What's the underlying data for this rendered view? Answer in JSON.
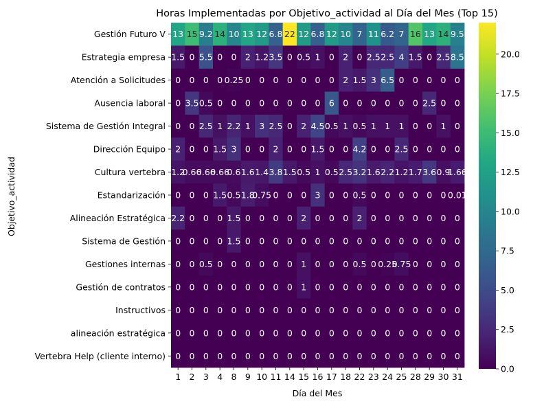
{
  "chart_data": {
    "type": "heatmap",
    "title": "Horas Implementadas por Objetivo_actividad al Día del Mes (Top 15)",
    "xlabel": "Día del Mes",
    "ylabel": "Objetivo_actividad",
    "x": [
      "1",
      "2",
      "3",
      "4",
      "8",
      "9",
      "10",
      "11",
      "14",
      "15",
      "16",
      "17",
      "18",
      "22",
      "23",
      "24",
      "25",
      "28",
      "29",
      "30",
      "31"
    ],
    "y": [
      "Gestión Futuro V",
      "Estrategia empresa",
      "Atención a Solicitudes",
      "Ausencia laboral",
      "Sistema de Gestión Integral",
      "Dirección Equipo",
      "Cultura vertebra",
      "Estandarización",
      "Alineación Estratégica",
      "Sistema de Gestión",
      "Gestiones internas",
      "Gestión de contratos",
      "Instructivos",
      "alineación estratégica",
      "Vertebra Help (cliente interno)"
    ],
    "values": [
      [
        13,
        15,
        9.2,
        14,
        10,
        13,
        12,
        6.8,
        22,
        12,
        6.8,
        12,
        10,
        7,
        11,
        6.2,
        7,
        16,
        13,
        14,
        9.5
      ],
      [
        1.5,
        0,
        5.5,
        0,
        0,
        2,
        1.2,
        3.5,
        0,
        0.5,
        1,
        0,
        2,
        0,
        2.5,
        2.5,
        4,
        1.5,
        0,
        2.5,
        8.5
      ],
      [
        0,
        0,
        0,
        0,
        0.25,
        0,
        0,
        0,
        0,
        0,
        0,
        0,
        2,
        1.5,
        3,
        6.5,
        0,
        0,
        0,
        0,
        0
      ],
      [
        0,
        3.5,
        0.5,
        0,
        0,
        0,
        0,
        0,
        0,
        0,
        0,
        6,
        0,
        0,
        0,
        0,
        0,
        0,
        2.5,
        0,
        0
      ],
      [
        0,
        0,
        2.5,
        1,
        2.2,
        1,
        3,
        2.5,
        0,
        2,
        4.5,
        0.5,
        1,
        0.5,
        1,
        1,
        1,
        0,
        0,
        1,
        0
      ],
      [
        2,
        0,
        0,
        1.5,
        3,
        0,
        0,
        2,
        0,
        0,
        1.5,
        0,
        0,
        4.2,
        0,
        0,
        2.5,
        0,
        0,
        0,
        0
      ],
      [
        1.2,
        0.66,
        0.66,
        0.66,
        0.6,
        1.6,
        1.4,
        3.8,
        1.5,
        0.5,
        1,
        0.5,
        2.5,
        3.2,
        1.6,
        2.2,
        1.2,
        1.7,
        3.6,
        0.9,
        1.66
      ],
      [
        0,
        0,
        0,
        1.5,
        0.5,
        1.8,
        0.75,
        0,
        0,
        0,
        3,
        0,
        0,
        0.5,
        0,
        0,
        0,
        0,
        0,
        0,
        0.01
      ],
      [
        2.2,
        0,
        0,
        0,
        1.5,
        0,
        0,
        0,
        0,
        2,
        0,
        0,
        0,
        2,
        0,
        0,
        0,
        0,
        0,
        0,
        0
      ],
      [
        0,
        0,
        0,
        0,
        1.5,
        0,
        0,
        0,
        0,
        0,
        0,
        0,
        0,
        0,
        0,
        0,
        0,
        0,
        0,
        0,
        0
      ],
      [
        0,
        0,
        0.5,
        0,
        0,
        0,
        0,
        0,
        0,
        1,
        0,
        0,
        0,
        0.5,
        0,
        0.25,
        0.75,
        0,
        0,
        0,
        0
      ],
      [
        0,
        0,
        0,
        0,
        0,
        0,
        0,
        0,
        0,
        1,
        0,
        0,
        0,
        0,
        0,
        0,
        0,
        0,
        0,
        0,
        0
      ],
      [
        0,
        0,
        0,
        0,
        0,
        0,
        0,
        0,
        0,
        0,
        0,
        0,
        0,
        0,
        0,
        0,
        0,
        0,
        0,
        0,
        0
      ],
      [
        0,
        0,
        0,
        0,
        0,
        0,
        0,
        0,
        0,
        0,
        0,
        0,
        0,
        0,
        0,
        0,
        0,
        0,
        0,
        0,
        0
      ],
      [
        0,
        0,
        0,
        0,
        0,
        0,
        0,
        0,
        0,
        0,
        0,
        0,
        0,
        0,
        0,
        0,
        0,
        0,
        0,
        0,
        0
      ]
    ],
    "labels": [
      [
        "13",
        "15",
        "9.2",
        "14",
        "10",
        "13",
        "12",
        "6.8",
        "22",
        "12",
        "6.8",
        "12",
        "10",
        "7",
        "11",
        "6.2",
        "7",
        "16",
        "13",
        "14",
        "9.5"
      ],
      [
        "1.5",
        "0",
        "5.5",
        "0",
        "0",
        "2",
        "1.2",
        "3.5",
        "0",
        "0.5",
        "1",
        "0",
        "2",
        "0",
        "2.5",
        "2.5",
        "4",
        "1.5",
        "0",
        "2.5",
        "8.5"
      ],
      [
        "0",
        "0",
        "0",
        "0",
        "0.25",
        "0",
        "0",
        "0",
        "0",
        "0",
        "0",
        "0",
        "2",
        "1.5",
        "3",
        "6.5",
        "0",
        "0",
        "0",
        "0",
        "0"
      ],
      [
        "0",
        "3.5",
        "0.5",
        "0",
        "0",
        "0",
        "0",
        "0",
        "0",
        "0",
        "0",
        "6",
        "0",
        "0",
        "0",
        "0",
        "0",
        "0",
        "2.5",
        "0",
        "0"
      ],
      [
        "0",
        "0",
        "2.5",
        "1",
        "2.2",
        "1",
        "3",
        "2.5",
        "0",
        "2",
        "4.5",
        "0.5",
        "1",
        "0.5",
        "1",
        "1",
        "1",
        "0",
        "0",
        "1",
        "0"
      ],
      [
        "2",
        "0",
        "0",
        "1.5",
        "3",
        "0",
        "0",
        "2",
        "0",
        "0",
        "1.5",
        "0",
        "0",
        "4.2",
        "0",
        "0",
        "2.5",
        "0",
        "0",
        "0",
        "0"
      ],
      [
        "1.2",
        "0.66",
        "0.66",
        "0.66",
        "0.6",
        "1.6",
        "1.4",
        "3.8",
        "1.5",
        "0.5",
        "1",
        "0.5",
        "2.5",
        "3.2",
        "1.6",
        "2.2",
        "1.2",
        "1.7",
        "3.6",
        "0.9",
        "1.66"
      ],
      [
        "0",
        "0",
        "0",
        "1.5",
        "0.5",
        "1.8",
        "0.75",
        "0",
        "0",
        "0",
        "3",
        "0",
        "0",
        "0.5",
        "0",
        "0",
        "0",
        "0",
        "0",
        "0",
        "0.01"
      ],
      [
        "2.2",
        "0",
        "0",
        "0",
        "1.5",
        "0",
        "0",
        "0",
        "0",
        "2",
        "0",
        "0",
        "0",
        "2",
        "0",
        "0",
        "0",
        "0",
        "0",
        "0",
        "0"
      ],
      [
        "0",
        "0",
        "0",
        "0",
        "1.5",
        "0",
        "0",
        "0",
        "0",
        "0",
        "0",
        "0",
        "0",
        "0",
        "0",
        "0",
        "0",
        "0",
        "0",
        "0",
        "0"
      ],
      [
        "0",
        "0",
        "0.5",
        "0",
        "0",
        "0",
        "0",
        "0",
        "0",
        "1",
        "0",
        "0",
        "0",
        "0.5",
        "0",
        "0.25",
        "0.75",
        "0",
        "0",
        "0",
        "0"
      ],
      [
        "0",
        "0",
        "0",
        "0",
        "0",
        "0",
        "0",
        "0",
        "0",
        "1",
        "0",
        "0",
        "0",
        "0",
        "0",
        "0",
        "0",
        "0",
        "0",
        "0",
        "0"
      ],
      [
        "0",
        "0",
        "0",
        "0",
        "0",
        "0",
        "0",
        "0",
        "0",
        "0",
        "0",
        "0",
        "0",
        "0",
        "0",
        "0",
        "0",
        "0",
        "0",
        "0",
        "0"
      ],
      [
        "0",
        "0",
        "0",
        "0",
        "0",
        "0",
        "0",
        "0",
        "0",
        "0",
        "0",
        "0",
        "0",
        "0",
        "0",
        "0",
        "0",
        "0",
        "0",
        "0",
        "0"
      ],
      [
        "0",
        "0",
        "0",
        "0",
        "0",
        "0",
        "0",
        "0",
        "0",
        "0",
        "0",
        "0",
        "0",
        "0",
        "0",
        "0",
        "0",
        "0",
        "0",
        "0",
        "0"
      ]
    ],
    "colorbar": {
      "colormap": "viridis",
      "range": [
        0,
        22
      ],
      "ticks": [
        0,
        2.5,
        5,
        7.5,
        10,
        12.5,
        15,
        17.5,
        20
      ],
      "tick_labels": [
        "0.0",
        "2.5",
        "5.0",
        "7.5",
        "10.0",
        "12.5",
        "15.0",
        "17.5",
        "20.0"
      ]
    }
  }
}
